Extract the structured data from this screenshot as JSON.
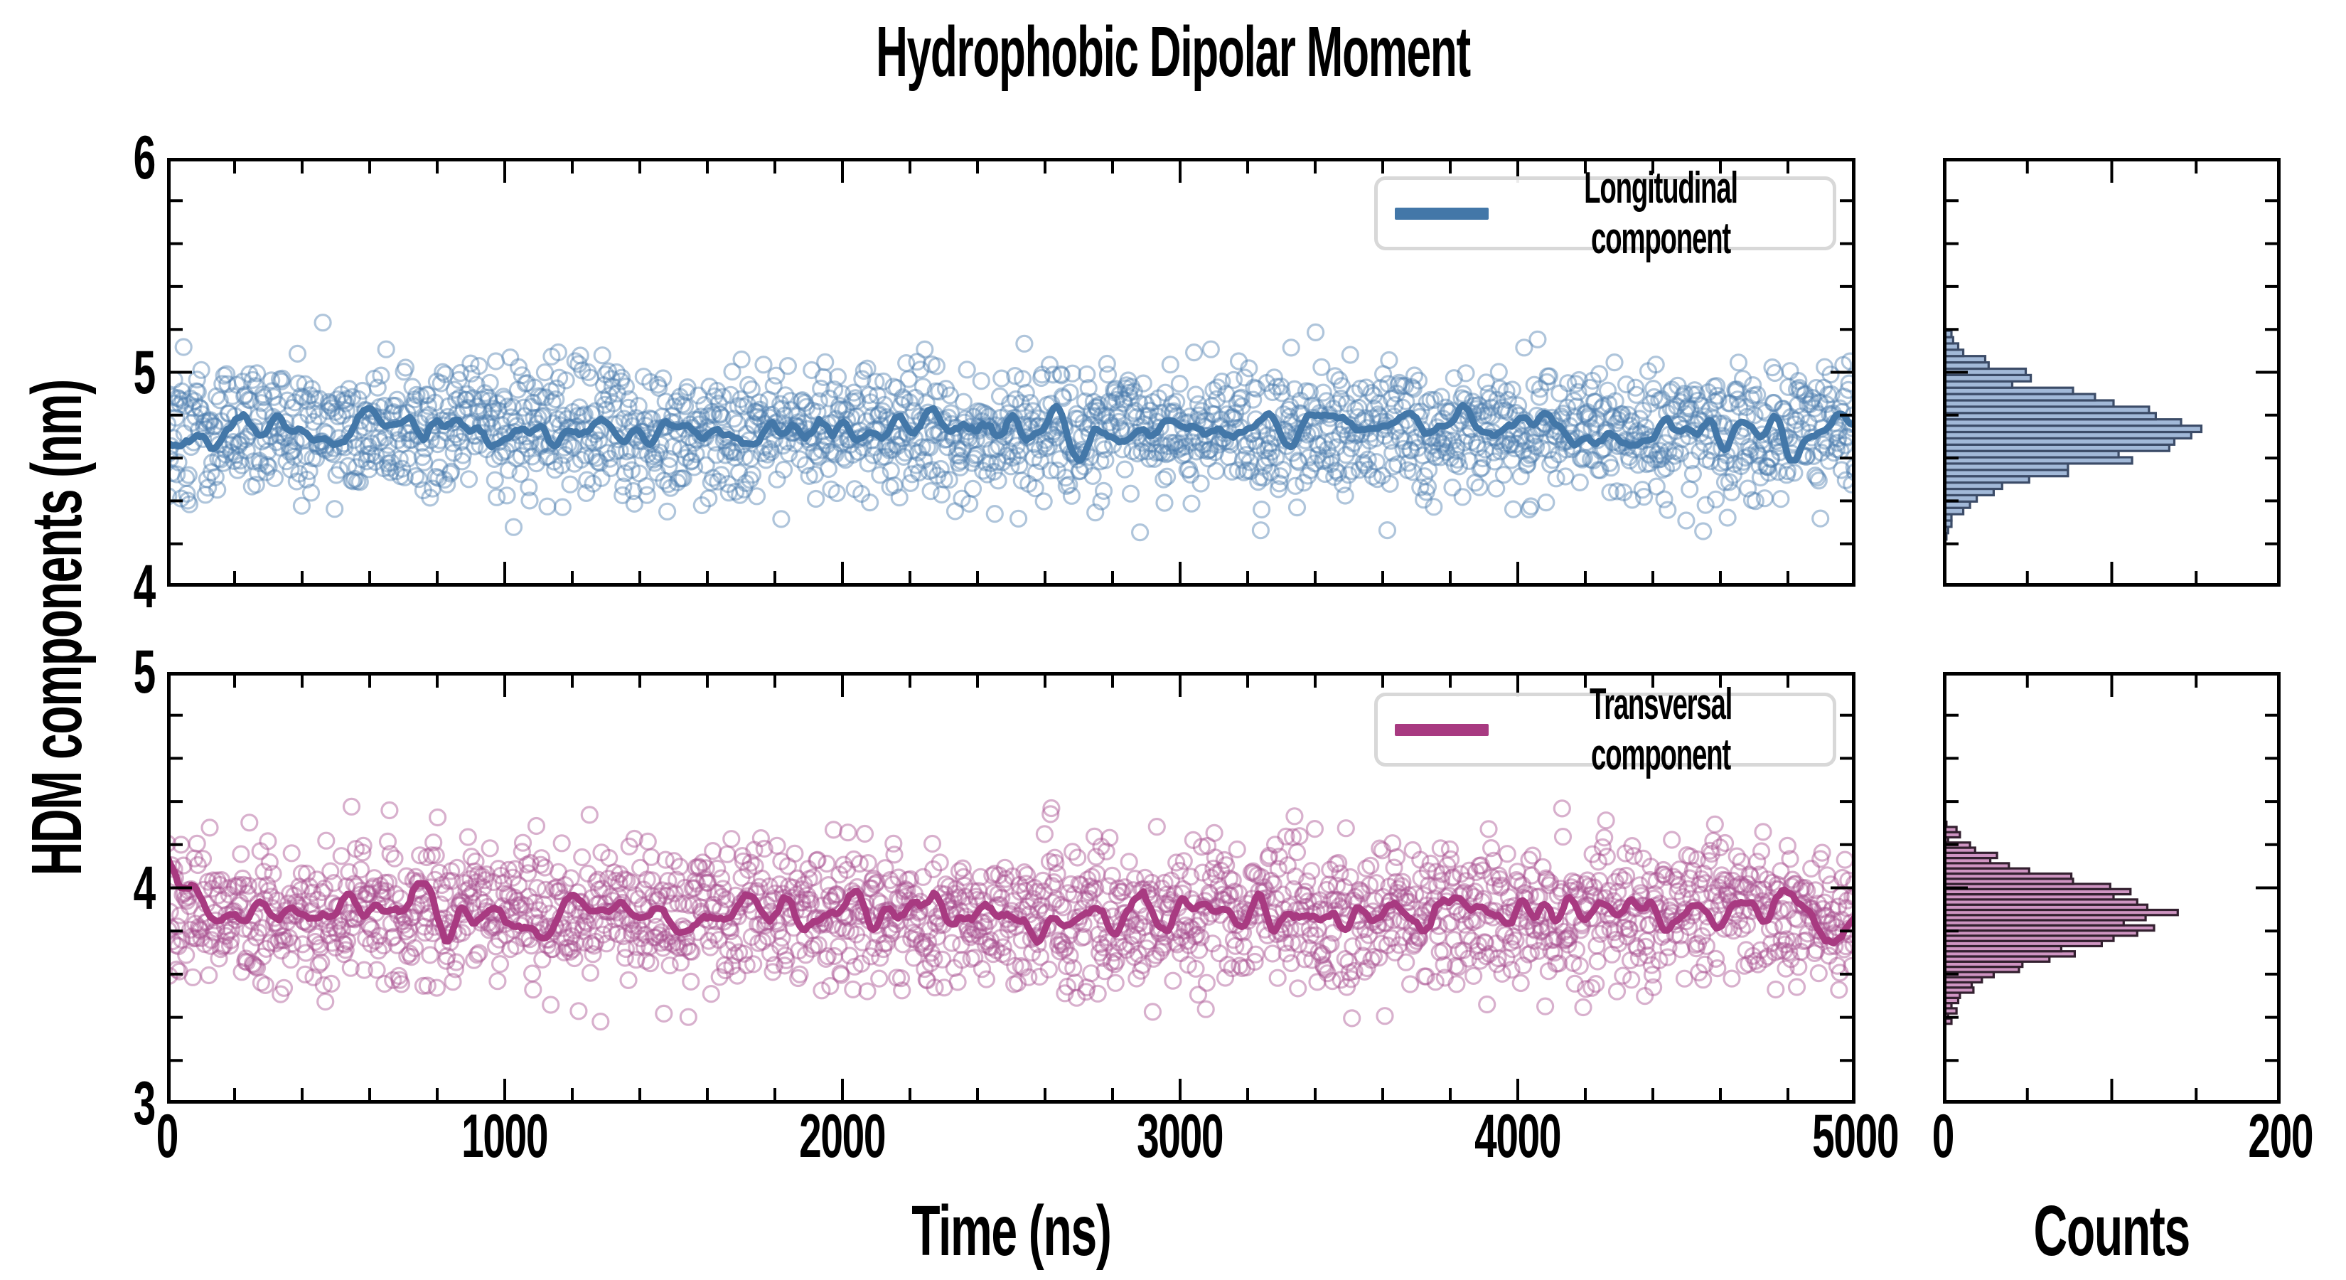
{
  "title": "Hydrophobic Dipolar Moment",
  "axes": {
    "y_label": "HDM components (nm)",
    "x_label": "Time (ns)",
    "counts_label": "Counts",
    "x_range": [
      0,
      5000
    ],
    "x_tick_labels": [
      "0",
      "1000",
      "2000",
      "3000",
      "4000",
      "5000"
    ],
    "x_minor_step": 200,
    "top_y_range": [
      4,
      6
    ],
    "top_y_tick_labels": [
      "4",
      "5",
      "6"
    ],
    "bottom_y_range": [
      3,
      5
    ],
    "bottom_y_tick_labels": [
      "3",
      "4",
      "5"
    ],
    "y_minor_step": 0.2,
    "hist_x_range": [
      0,
      200
    ],
    "hist_x_tick_labels": [
      "0",
      "200"
    ],
    "hist_x_major_ticks": [
      0,
      100,
      200
    ],
    "hist_x_minor_ticks": [
      50,
      150
    ]
  },
  "legend": {
    "items": [
      {
        "label": "Longitudinal component",
        "color": "#4377a8"
      },
      {
        "label": "Transversal component",
        "color": "#a83a81"
      }
    ]
  },
  "chart_data": [
    {
      "type": "scatter",
      "name": "Longitudinal component (raw samples)",
      "panel": "top",
      "x_range": [
        0,
        5000
      ],
      "ylim": [
        4,
        6
      ],
      "n_points": 2000,
      "y_mean": 4.73,
      "y_std": 0.155,
      "y_clip": [
        4.17,
        5.3
      ],
      "marker": "open-circle",
      "marker_radius": 11,
      "color": "#4e7fb0",
      "opacity": 0.45
    },
    {
      "type": "line",
      "name": "Longitudinal running average",
      "panel": "top",
      "mean": 4.73,
      "fluctuation_std": 0.045,
      "initial_value": 4.73,
      "color": "#4377a8",
      "width": 9.5
    },
    {
      "type": "scatter",
      "name": "Transversal component (raw samples)",
      "panel": "bottom",
      "x_range": [
        0,
        5000
      ],
      "ylim": [
        3,
        5
      ],
      "n_points": 2000,
      "y_mean": 3.88,
      "y_std": 0.165,
      "y_clip": [
        3.33,
        4.38
      ],
      "marker": "open-circle",
      "marker_radius": 11,
      "color": "#a84f90",
      "opacity": 0.45
    },
    {
      "type": "line",
      "name": "Transversal running average",
      "panel": "bottom",
      "mean": 3.88,
      "fluctuation_std": 0.05,
      "initial_value": 4.07,
      "color": "#a83a81",
      "width": 9.5
    },
    {
      "type": "histogram",
      "name": "Longitudinal component distribution",
      "panel": "hist-top",
      "orientation": "horizontal",
      "xlabel": "Counts",
      "xlim": [
        0,
        200
      ],
      "value_min": 4.22,
      "bin_width": 0.0295,
      "counts": [
        1,
        2,
        4,
        4,
        11,
        15,
        19,
        29,
        34,
        50,
        73,
        73,
        111,
        103,
        133,
        136,
        146,
        152,
        140,
        125,
        121,
        100,
        89,
        76,
        40,
        51,
        48,
        26,
        24,
        11,
        8,
        5,
        4
      ],
      "fill": "#a2b9d8",
      "edge": "#3c4c68"
    },
    {
      "type": "histogram",
      "name": "Transversal component distribution",
      "panel": "hist-bottom",
      "orientation": "horizontal",
      "xlabel": "Counts",
      "xlim": [
        0,
        200
      ],
      "value_min": 3.37,
      "bin_width": 0.024,
      "counts": [
        4,
        2,
        7,
        4,
        8,
        9,
        17,
        16,
        22,
        29,
        44,
        46,
        62,
        77,
        69,
        93,
        100,
        114,
        124,
        106,
        119,
        138,
        120,
        114,
        100,
        110,
        98,
        76,
        75,
        50,
        38,
        27,
        31,
        18,
        15,
        2,
        9,
        7,
        1
      ],
      "fill": "#cf95c2",
      "edge": "#33202f"
    }
  ]
}
